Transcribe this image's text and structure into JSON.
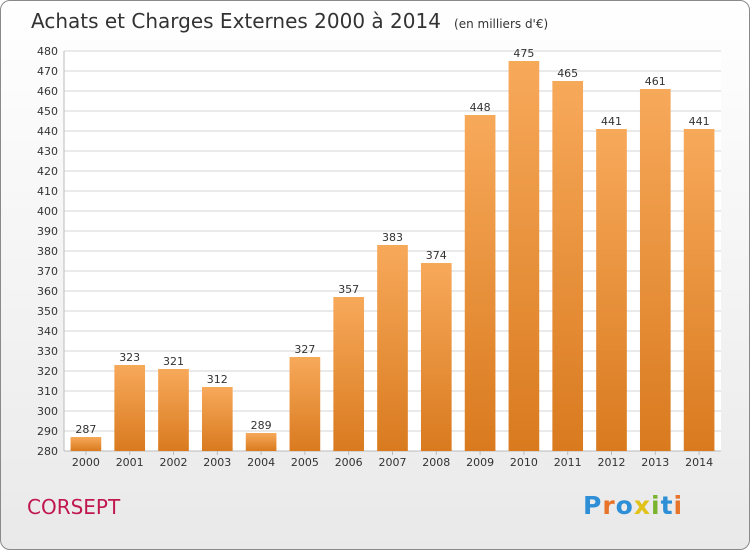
{
  "header": {
    "title": "Achats et Charges Externes 2000 à 2014",
    "subtitle": "(en milliers d'€)"
  },
  "footer": {
    "place": "CORSEPT",
    "logo": "Proxiti"
  },
  "colors": {
    "bar_top": "#f7a95a",
    "bar_bottom": "#d97a1f",
    "grid": "#d6d6d6",
    "axis_text": "#333333",
    "place": "#c0174e",
    "logo_letters": [
      "#2e8fd6",
      "#e8742a",
      "#2e8fd6",
      "#e0c21a",
      "#7ab32e",
      "#2e8fd6",
      "#e8742a"
    ]
  },
  "chart_data": {
    "type": "bar",
    "title": "Achats et Charges Externes 2000 à 2014",
    "subtitle": "(en milliers d'€)",
    "categories": [
      "2000",
      "2001",
      "2002",
      "2003",
      "2004",
      "2005",
      "2006",
      "2007",
      "2008",
      "2009",
      "2010",
      "2011",
      "2012",
      "2013",
      "2014"
    ],
    "values": [
      287,
      323,
      321,
      312,
      289,
      327,
      357,
      383,
      374,
      448,
      475,
      465,
      441,
      461,
      441
    ],
    "ylim": [
      280,
      480
    ],
    "ytick_step": 10,
    "grid": true,
    "legend": "none"
  }
}
